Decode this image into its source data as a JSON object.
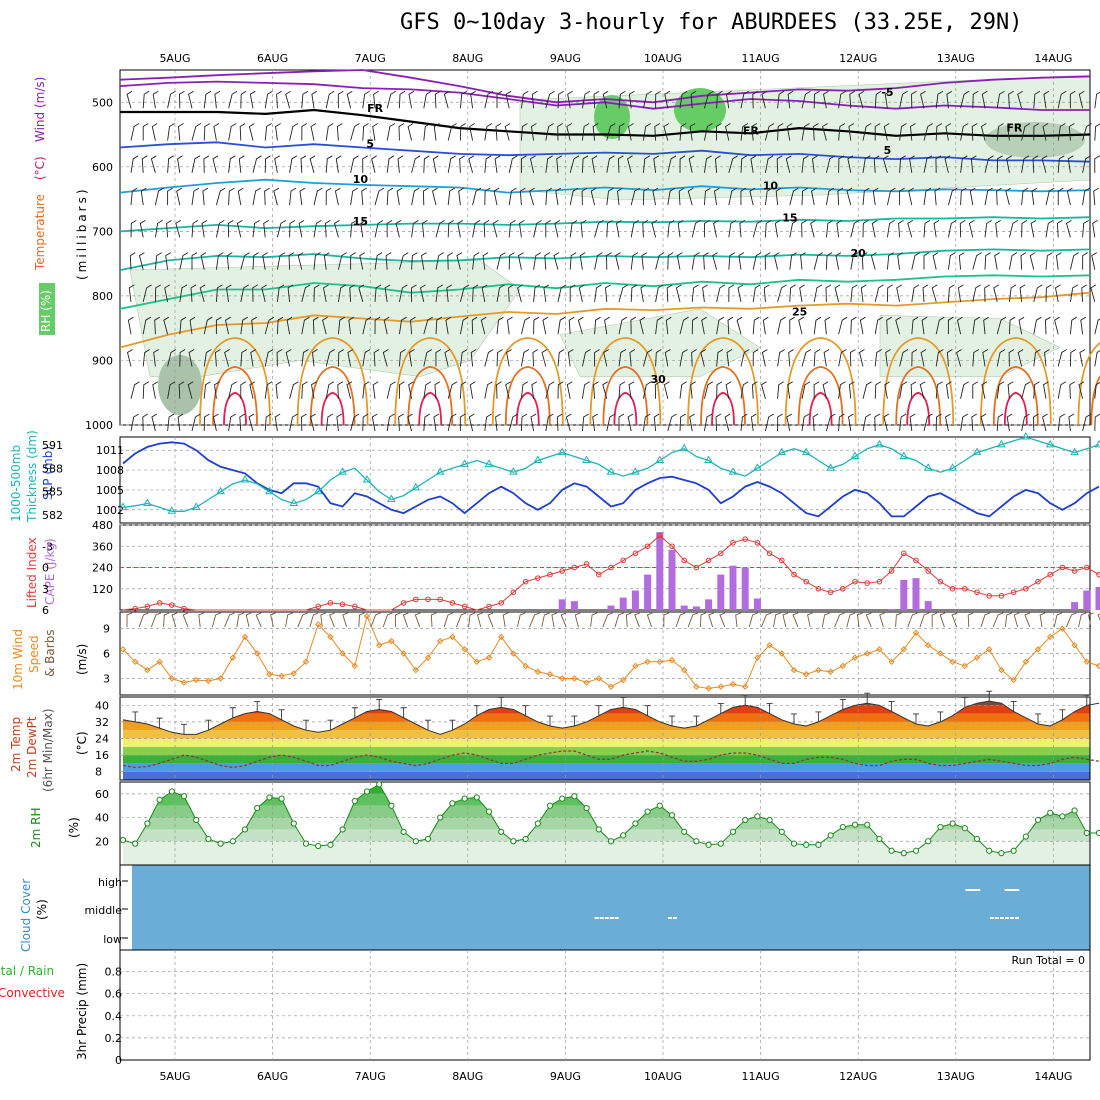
{
  "title": "GFS 0~10day 3-hourly for ABURDEES (33.25E, 29N)",
  "colors": {
    "temp_purple": "#8a1fb5",
    "temp_blue": "#2a4fd6",
    "temp_lightblue": "#1f9fd8",
    "temp_teal": "#19b5a0",
    "temp_green": "#1fc08a",
    "temp_orange": "#e49a2a",
    "temp_darkorange": "#e07020",
    "temp_red": "#e02050",
    "freezing": "#000000",
    "rh_light": "#e3f1e3",
    "rh_mid": "#c6e2c6",
    "rh_dark": "#66cc66",
    "slp": "#1f3fcf",
    "thickness": "#1fb5b5",
    "lifted": "#e03a3a",
    "cape": "#b36be0",
    "wind_speed": "#e88a20",
    "barb": "#7a5a3a",
    "rh2m": "#1a8a1a",
    "cloud": "#6aaed8",
    "precip_total": "#2ab52a",
    "precip_conv": "#e02020"
  },
  "dates": [
    "5AUG",
    "6AUG",
    "7AUG",
    "8AUG",
    "9AUG",
    "10AUG",
    "11AUG",
    "12AUG",
    "13AUG",
    "14AUG"
  ],
  "panel_labels": {
    "upper": {
      "temperature": "Temperature",
      "temp_unit": "(°C)",
      "wind": "Wind (m/s)",
      "rh": "RH (%)",
      "pressure": "(millibars)"
    },
    "slp": {
      "thickness1": "1000-500mb",
      "thickness2": "Thickness (dm)",
      "slp": "SLP (mb)"
    },
    "cape": {
      "lifted": "Lifted Index",
      "cape": "CAPE (J/kg)"
    },
    "wind10": {
      "l1": "10m Wind",
      "l2": "Speed",
      "l3": "& Barbs",
      "unit": "(m/s)"
    },
    "temp2m": {
      "l1": "2m Temp",
      "l2": "2m DewPt",
      "l3": "(6hr Min/Max)",
      "unit": "(°C)"
    },
    "rh2m": {
      "l1": "2m RH",
      "unit": "(%)"
    },
    "cloud": {
      "l1": "Cloud Cover",
      "unit": "(%)"
    },
    "precip": {
      "l1": "Total / Rain",
      "l2": "Convective",
      "l3": "3hr Precip (mm)"
    }
  },
  "run_total": "Run Total = 0",
  "chart_data": [
    {
      "type": "contour",
      "name": "upper_air",
      "ylabel": "millibars",
      "y_ticks": [
        500,
        600,
        700,
        800,
        900,
        1000
      ],
      "ylim": [
        1000,
        450
      ],
      "contour_labels": [
        {
          "text": "FR",
          "pressure": 515,
          "day": 2.05
        },
        {
          "text": "FR",
          "pressure": 550,
          "day": 5.9
        },
        {
          "text": "FR",
          "pressure": 545,
          "day": 8.6
        },
        {
          "text": "-5",
          "pressure": 490,
          "day": 7.3
        },
        {
          "text": "5",
          "pressure": 570,
          "day": 2.0
        },
        {
          "text": "5",
          "pressure": 580,
          "day": 7.3
        },
        {
          "text": "10",
          "pressure": 625,
          "day": 1.9
        },
        {
          "text": "10",
          "pressure": 635,
          "day": 6.1
        },
        {
          "text": "15",
          "pressure": 690,
          "day": 1.9
        },
        {
          "text": "15",
          "pressure": 685,
          "day": 6.3
        },
        {
          "text": "20",
          "pressure": 740,
          "day": 7.0
        },
        {
          "text": "25",
          "pressure": 830,
          "day": 6.4
        },
        {
          "text": "30",
          "pressure": 935,
          "day": 4.95
        }
      ],
      "isotherms": [
        {
          "label": "-5",
          "color": "#8a1fb5",
          "p": [
            465,
            462,
            458,
            455,
            452,
            450,
            462,
            475,
            490,
            500,
            495,
            500,
            490,
            485,
            480,
            482,
            478,
            470,
            465,
            462,
            460
          ]
        },
        {
          "label": "-5b",
          "color": "#8a1fb5",
          "p": [
            475,
            470,
            468,
            470,
            472,
            478,
            480,
            485,
            495,
            505,
            500,
            510,
            502,
            495,
            498,
            505,
            510,
            505,
            508,
            512,
            512
          ]
        },
        {
          "label": "FR",
          "color": "#000000",
          "p": [
            515,
            515,
            515,
            518,
            512,
            520,
            530,
            540,
            545,
            550,
            550,
            552,
            545,
            548,
            540,
            545,
            552,
            548,
            552,
            552,
            550
          ]
        },
        {
          "label": "5",
          "color": "#2a4fd6",
          "p": [
            570,
            565,
            562,
            570,
            565,
            570,
            575,
            580,
            582,
            580,
            578,
            580,
            575,
            582,
            580,
            585,
            588,
            585,
            590,
            590,
            592
          ]
        },
        {
          "label": "10",
          "color": "#1f9fd8",
          "p": [
            640,
            632,
            625,
            620,
            625,
            628,
            630,
            632,
            640,
            636,
            632,
            636,
            630,
            635,
            632,
            636,
            638,
            635,
            636,
            638,
            636
          ]
        },
        {
          "label": "15",
          "color": "#19b5a0",
          "p": [
            700,
            695,
            690,
            695,
            692,
            690,
            688,
            688,
            690,
            688,
            685,
            686,
            684,
            685,
            682,
            684,
            680,
            680,
            678,
            680,
            678
          ]
        },
        {
          "label": "20",
          "color": "#19b5a0",
          "p": [
            760,
            745,
            738,
            740,
            735,
            742,
            746,
            745,
            740,
            742,
            738,
            740,
            738,
            740,
            736,
            738,
            735,
            730,
            728,
            730,
            728
          ]
        },
        {
          "label": "20b",
          "color": "#1fc08a",
          "p": [
            820,
            805,
            790,
            790,
            780,
            785,
            795,
            790,
            782,
            788,
            780,
            785,
            778,
            782,
            775,
            778,
            775,
            770,
            768,
            770,
            768
          ]
        },
        {
          "label": "25",
          "color": "#e49a2a",
          "p": [
            880,
            860,
            845,
            842,
            830,
            835,
            840,
            832,
            825,
            828,
            820,
            822,
            818,
            820,
            815,
            812,
            815,
            810,
            805,
            802,
            795
          ]
        }
      ],
      "rh_regions": [
        {
          "level": "light",
          "day0": 0.0,
          "day1": 10.0,
          "p0": 700,
          "p1": 1000
        },
        {
          "level": "light",
          "day0": 4.0,
          "day1": 10.0,
          "p0": 470,
          "p1": 630
        }
      ],
      "wind_barbs": "3-hourly barbs from 500 to 1000 mb"
    },
    {
      "type": "line",
      "name": "slp_thickness",
      "slp_ylim": [
        1000,
        1013
      ],
      "slp_ticks": [
        1002,
        1005,
        1008,
        1011
      ],
      "thickness_ylim": [
        581,
        592
      ],
      "thickness_ticks": [
        582,
        585,
        588,
        591
      ],
      "slp": [
        1009,
        1010.5,
        1011.5,
        1012,
        1012.2,
        1012,
        1011,
        1009.5,
        1008.5,
        1008,
        1007.5,
        1006,
        1005,
        1004.5,
        1006,
        1006,
        1005.5,
        1003,
        1002.5,
        1004.5,
        1004,
        1003,
        1002,
        1001.5,
        1002.5,
        1003.5,
        1004,
        1003,
        1001.5,
        1003,
        1004.5,
        1005.5,
        1004.5,
        1003,
        1002,
        1003,
        1005,
        1006,
        1005.5,
        1004,
        1002.5,
        1003,
        1005,
        1006,
        1006.8,
        1007,
        1006.5,
        1006,
        1005,
        1003,
        1004,
        1005.5,
        1006.2,
        1005.5,
        1004.5,
        1003,
        1001.5,
        1001,
        1002.5,
        1004,
        1005,
        1004.5,
        1003,
        1001,
        1001,
        1002.5,
        1004,
        1004.5,
        1003.5,
        1002.5,
        1001.5,
        1001,
        1002.5,
        1004,
        1005,
        1004.5,
        1003,
        1002,
        1003,
        1004.5,
        1005.5
      ],
      "thickness": [
        583,
        583.2,
        583.5,
        583,
        582.5,
        582.5,
        583,
        584,
        585,
        586,
        586.5,
        586,
        585,
        584,
        583.5,
        584,
        585,
        586.5,
        587.5,
        588,
        586.5,
        585,
        584,
        584.5,
        585.5,
        586.5,
        587.5,
        588,
        588.5,
        589,
        588.5,
        588,
        587.5,
        588,
        589,
        589.5,
        590,
        589.5,
        589,
        588.5,
        587.5,
        587,
        587.5,
        588,
        589,
        590,
        590.5,
        589.5,
        589,
        588,
        587.5,
        587,
        588,
        589,
        590,
        590.5,
        590,
        589,
        588,
        588.5,
        589.5,
        590.5,
        591,
        590.5,
        589.5,
        589,
        588,
        587.5,
        588,
        589,
        590,
        590.5,
        591,
        591.5,
        592,
        591.5,
        591,
        590.5,
        590,
        590.5,
        591
      ]
    },
    {
      "type": "bar",
      "name": "cape_lifted",
      "cape_ylim": [
        0,
        480
      ],
      "cape_ticks": [
        120,
        240,
        360,
        480
      ],
      "li_ylim": [
        6,
        -6
      ],
      "li_ticks": [
        -3,
        0,
        3,
        6
      ],
      "li_zero_line": 0,
      "cape": [
        0,
        0,
        0,
        0,
        0,
        0,
        0,
        0,
        0,
        0,
        0,
        0,
        0,
        0,
        0,
        0,
        0,
        0,
        0,
        0,
        0,
        0,
        0,
        0,
        0,
        0,
        0,
        0,
        0,
        0,
        0,
        0,
        0,
        0,
        0,
        0,
        60,
        50,
        0,
        0,
        25,
        70,
        110,
        200,
        440,
        340,
        25,
        20,
        60,
        200,
        250,
        240,
        65,
        0,
        0,
        0,
        0,
        0,
        0,
        0,
        0,
        0,
        0,
        5,
        170,
        180,
        50,
        0,
        0,
        0,
        0,
        0,
        0,
        0,
        0,
        0,
        0,
        0,
        45,
        110,
        130,
        90
      ],
      "lifted": [
        6,
        5.8,
        5.5,
        5,
        5.3,
        5.8,
        6,
        6,
        6,
        6,
        6,
        6,
        6,
        6,
        6,
        6,
        5.5,
        5,
        5.2,
        5.5,
        6,
        6,
        6,
        5,
        4.5,
        4.5,
        4.5,
        5,
        5.5,
        6,
        5.5,
        5,
        3.5,
        2,
        1.5,
        1,
        0.5,
        0,
        -0.5,
        1,
        0,
        -1,
        -2,
        -3,
        -4.5,
        -3,
        -1,
        0,
        -1,
        -2,
        -3.5,
        -4,
        -3.5,
        -2,
        -1,
        1,
        2,
        3,
        3.5,
        3,
        2,
        2.2,
        2,
        0.5,
        -2,
        -1,
        0.5,
        2,
        3,
        3,
        3.5,
        4,
        4,
        3.5,
        3,
        2,
        1,
        0,
        0.5,
        0,
        1
      ]
    },
    {
      "type": "line",
      "name": "wind10m",
      "ylim": [
        1,
        11
      ],
      "ticks": [
        3,
        6,
        9
      ],
      "speed": [
        6.5,
        5,
        4,
        5,
        3,
        2.5,
        2.8,
        2.7,
        3,
        5.5,
        8,
        6,
        3.5,
        3.3,
        3.6,
        5,
        9.5,
        8,
        6,
        4.5,
        10.5,
        7,
        7.5,
        6,
        4,
        5.5,
        7.5,
        8,
        6.5,
        5,
        5.5,
        8,
        6,
        4.5,
        3.8,
        3.5,
        3,
        3,
        2.5,
        3,
        2,
        2.8,
        4.5,
        5,
        5,
        5.2,
        4,
        2,
        1.8,
        2,
        2.3,
        2,
        5.5,
        7,
        6,
        4,
        3.5,
        4,
        3.8,
        4.5,
        5.5,
        6,
        6.5,
        5,
        6.5,
        8.5,
        7,
        6,
        5,
        4.5,
        5.5,
        6.5,
        4,
        2.8,
        5,
        6.5,
        8,
        9,
        7,
        5,
        4.5
      ]
    },
    {
      "type": "area",
      "name": "temp2m",
      "ylim": [
        4,
        44
      ],
      "ticks": [
        8,
        16,
        24,
        32,
        40
      ],
      "temp": [
        33,
        32,
        31,
        29,
        27,
        26,
        26,
        28,
        31,
        34,
        36,
        37,
        36,
        33,
        30,
        28,
        27,
        28,
        31,
        34,
        37,
        38,
        37,
        34,
        31,
        28,
        26,
        28,
        31,
        35,
        38,
        39,
        38,
        35,
        32,
        30,
        29,
        30,
        32,
        35,
        38,
        39,
        38,
        35,
        32,
        30,
        29,
        30,
        33,
        36,
        39,
        40,
        39,
        36,
        33,
        31,
        30,
        32,
        35,
        38,
        40,
        41,
        40,
        37,
        34,
        31,
        30,
        32,
        35,
        39,
        41,
        42,
        41,
        37,
        34,
        31,
        30,
        33,
        37,
        40,
        41
      ],
      "dewpoint": [
        11,
        10,
        10.5,
        12,
        14,
        16,
        15,
        13,
        11,
        10,
        11,
        13,
        15,
        16,
        15,
        13,
        11,
        11,
        13,
        15,
        16,
        15,
        13,
        12,
        11,
        12,
        14,
        16,
        17,
        16,
        14,
        12,
        12,
        14,
        16,
        17,
        18,
        18,
        16,
        14,
        14,
        16,
        17,
        18,
        17,
        15,
        13,
        13,
        14,
        16,
        17,
        17,
        16,
        14,
        12,
        12,
        14,
        15,
        15,
        14,
        12,
        11,
        11,
        13,
        14,
        14,
        12,
        11,
        11,
        12,
        13,
        14,
        13,
        12,
        11,
        11,
        12,
        14,
        15,
        14,
        13
      ]
    },
    {
      "type": "area",
      "name": "rh2m",
      "ylim": [
        0,
        70
      ],
      "ticks": [
        20,
        40,
        60
      ],
      "rh": [
        21,
        18,
        35,
        55,
        62,
        58,
        38,
        22,
        18,
        20,
        30,
        48,
        57,
        56,
        35,
        18,
        16,
        17,
        30,
        54,
        62,
        68,
        50,
        28,
        20,
        22,
        40,
        52,
        56,
        57,
        45,
        28,
        20,
        22,
        35,
        50,
        56,
        58,
        48,
        30,
        20,
        25,
        35,
        45,
        50,
        42,
        28,
        20,
        17,
        18,
        28,
        38,
        41,
        38,
        28,
        18,
        17,
        17,
        25,
        32,
        34,
        34,
        22,
        12,
        10,
        12,
        20,
        32,
        35,
        31,
        22,
        12,
        10,
        12,
        24,
        38,
        44,
        41,
        46,
        27,
        27
      ]
    },
    {
      "type": "area",
      "name": "cloud_cover",
      "ylabels": [
        "high",
        "middle",
        "low"
      ],
      "fill": "full",
      "white_marks": [
        {
          "layer": "high",
          "day0": 8.1,
          "day1": 8.25
        },
        {
          "layer": "high",
          "day0": 8.5,
          "day1": 8.65
        },
        {
          "layer": "mid-low",
          "day0": 4.3,
          "day1": 4.55
        },
        {
          "layer": "mid-low",
          "day0": 5.05,
          "day1": 5.15
        },
        {
          "layer": "mid-low",
          "day0": 8.35,
          "day1": 8.65
        }
      ]
    },
    {
      "type": "bar",
      "name": "precip3hr",
      "ylim": [
        0,
        1
      ],
      "ticks": [
        0,
        0.2,
        0.4,
        0.6,
        0.8
      ],
      "values": []
    }
  ]
}
